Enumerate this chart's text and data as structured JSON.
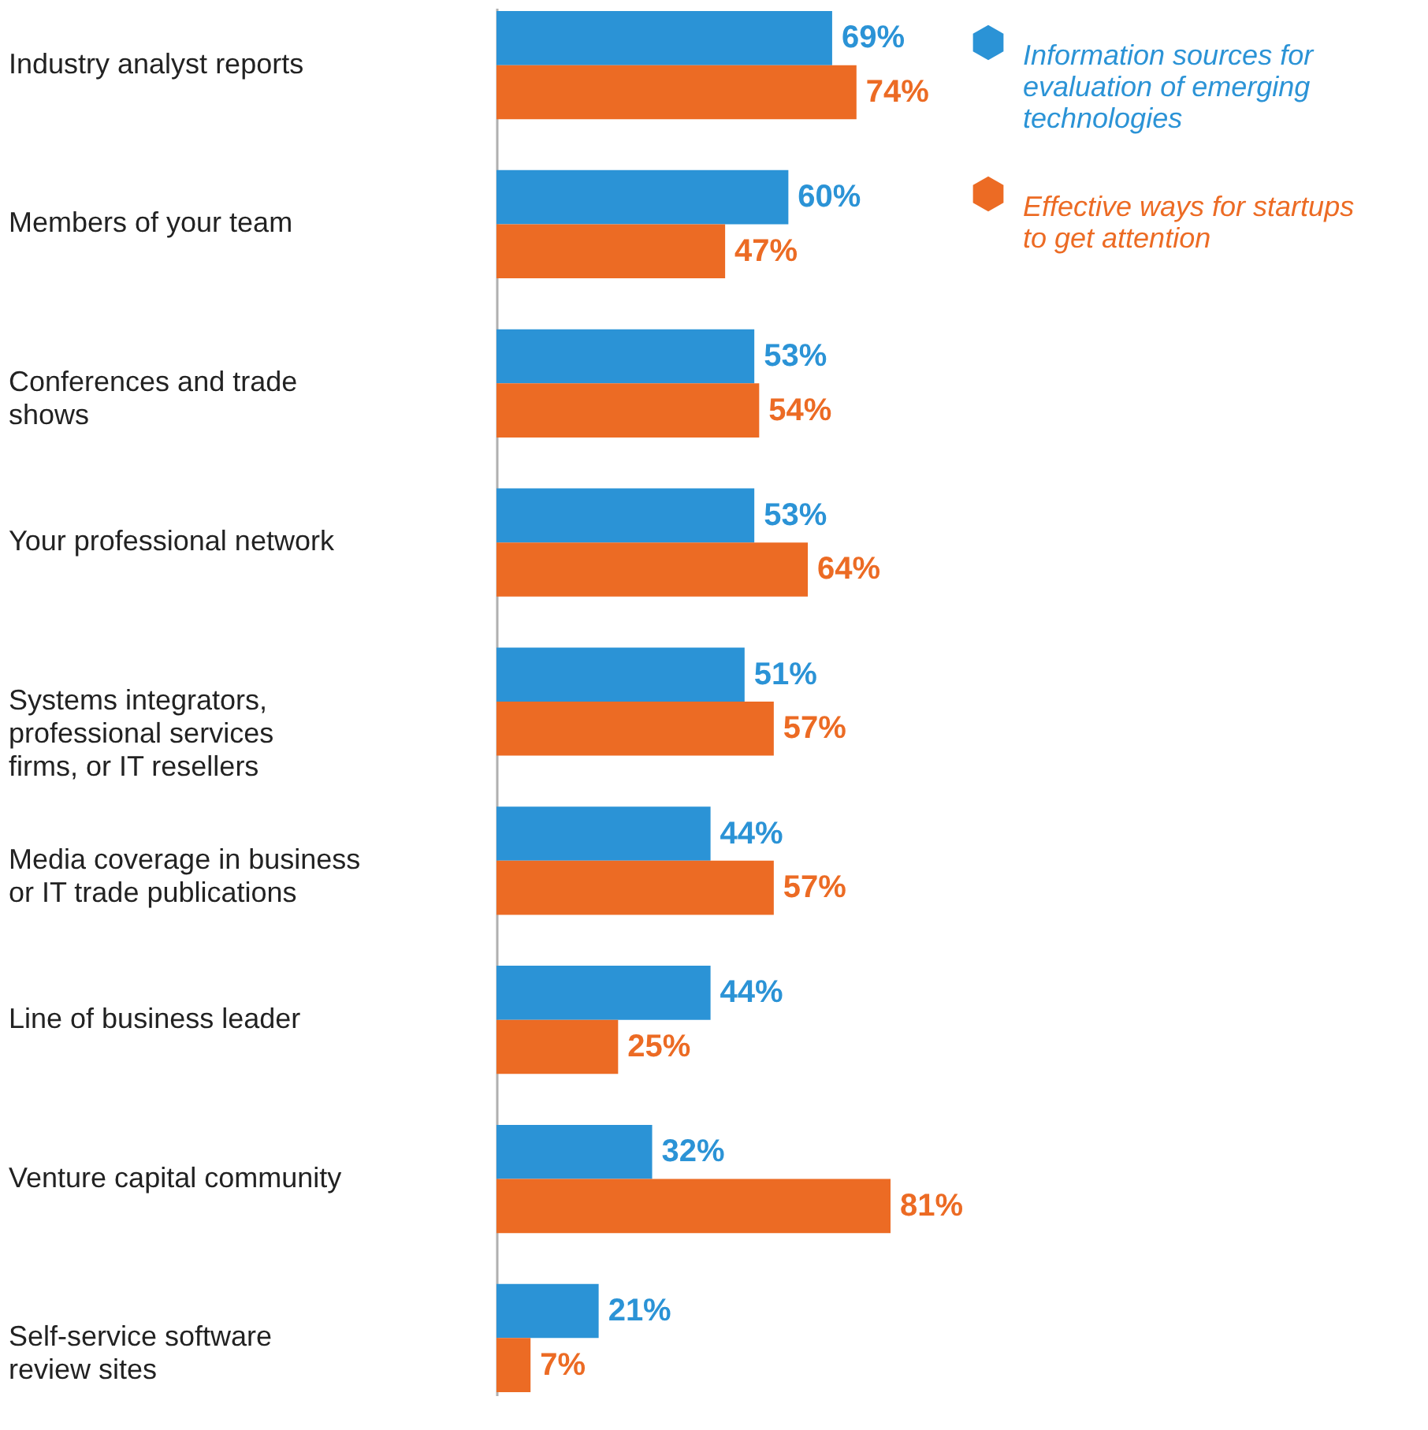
{
  "chart_data": {
    "type": "bar",
    "orientation": "horizontal",
    "legend": "top right",
    "grid": false,
    "categories": [
      "Industry analyst reports",
      "Members of your team",
      "Conferences and trade shows",
      "Your professional network",
      "Systems integrators, professional services firms, or IT resellers",
      "Media coverage in business or IT trade publications",
      "Line of business leader",
      "Venture capital community",
      "Self-service software review sites"
    ],
    "series": [
      {
        "name": "Information sources for evaluation of emerging technologies",
        "color": "#2b93d6",
        "values": [
          69,
          60,
          53,
          53,
          51,
          44,
          44,
          32,
          21
        ],
        "value_labels": [
          "69%",
          "60%",
          "53%",
          "53%",
          "51%",
          "44%",
          "44%",
          "32%",
          "21%"
        ]
      },
      {
        "name": "Effective ways for startups to get attention",
        "color": "#ec6b24",
        "values": [
          74,
          47,
          54,
          64,
          57,
          57,
          25,
          81,
          7
        ],
        "value_labels": [
          "74%",
          "47%",
          "54%",
          "64%",
          "57%",
          "57%",
          "25%",
          "81%",
          "7%"
        ]
      }
    ]
  }
}
